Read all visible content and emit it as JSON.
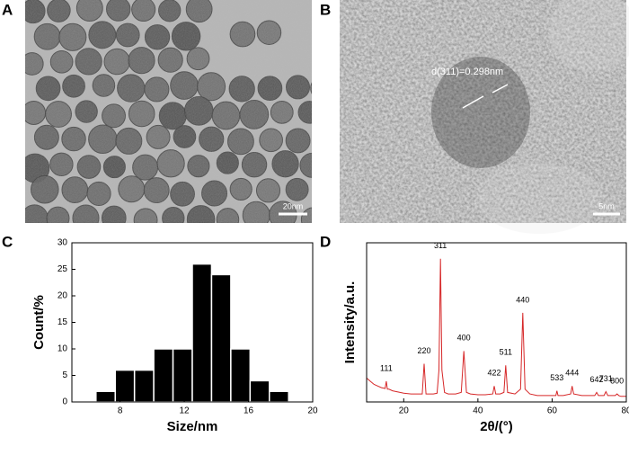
{
  "panels": {
    "a": "A",
    "b": "B",
    "c": "C",
    "d": "D"
  },
  "images": {
    "a_scale": "20nm",
    "b_scale": "5nm",
    "b_annotation": "d(311)=0.298nm"
  },
  "chart_data": [
    {
      "type": "histogram",
      "xlabel": "Size/nm",
      "ylabel": "Count/%",
      "bins": [
        6.5,
        7.7,
        8.9,
        10.1,
        11.3,
        12.5,
        13.7,
        14.9,
        16.1,
        17.3,
        18.5
      ],
      "counts": [
        2,
        6,
        6,
        10,
        10,
        26,
        24,
        10,
        4,
        2
      ],
      "color": "#000000",
      "xlim": [
        5,
        20
      ],
      "xticks": [
        8,
        12,
        16,
        20
      ],
      "ylim": [
        0,
        30
      ],
      "yticks": [
        0,
        5,
        10,
        15,
        20,
        25,
        30
      ]
    },
    {
      "type": "line",
      "xlabel": "2θ/(°)",
      "ylabel": "Intensity/a.u.",
      "x": [
        10,
        11,
        12,
        13,
        14,
        15,
        15.3,
        15.6,
        16,
        17,
        18,
        19,
        20,
        22,
        24,
        25,
        25.5,
        26,
        27,
        28,
        29,
        29.5,
        29.9,
        30.3,
        31,
        32,
        34,
        35.5,
        36.2,
        36.9,
        38,
        40,
        42,
        44,
        44.4,
        44.8,
        46,
        47,
        47.5,
        48,
        50,
        51.5,
        52.1,
        52.7,
        54,
        56,
        58,
        60,
        61,
        61.3,
        61.6,
        63,
        65,
        65.4,
        65.8,
        68,
        70,
        71.5,
        72,
        72.5,
        74,
        74.5,
        75,
        75.5,
        77,
        77.5,
        78,
        78.5,
        80
      ],
      "series": [
        {
          "color": "#d62728",
          "values": [
            15,
            13,
            11,
            10,
            9,
            8.5,
            13,
            8,
            8,
            7,
            6.5,
            6,
            5.5,
            5,
            5,
            5,
            24,
            5,
            5,
            5,
            5.5,
            20,
            90,
            20,
            6,
            5,
            5,
            6,
            32,
            6,
            5,
            4.5,
            4.5,
            5,
            10,
            5,
            5,
            6,
            23,
            6,
            5,
            8,
            56,
            8,
            5,
            4,
            4,
            4,
            4,
            7,
            4,
            4,
            5,
            10,
            5,
            4,
            4,
            4,
            6,
            4,
            4,
            6.5,
            4,
            4,
            4,
            5,
            4,
            3.5,
            3.5
          ]
        }
      ],
      "peak_labels": [
        {
          "text": "111",
          "x": 15.3
        },
        {
          "text": "220",
          "x": 25.5
        },
        {
          "text": "311",
          "x": 29.9
        },
        {
          "text": "400",
          "x": 36.2
        },
        {
          "text": "422",
          "x": 44.4
        },
        {
          "text": "511",
          "x": 47.5
        },
        {
          "text": "440",
          "x": 52.1
        },
        {
          "text": "533",
          "x": 61.3
        },
        {
          "text": "444",
          "x": 65.4
        },
        {
          "text": "642",
          "x": 72
        },
        {
          "text": "731",
          "x": 74.5
        },
        {
          "text": "800",
          "x": 77.5
        }
      ],
      "xlim": [
        10,
        80
      ],
      "xticks": [
        20,
        40,
        60,
        80
      ],
      "ylim": [
        0,
        100
      ]
    }
  ]
}
